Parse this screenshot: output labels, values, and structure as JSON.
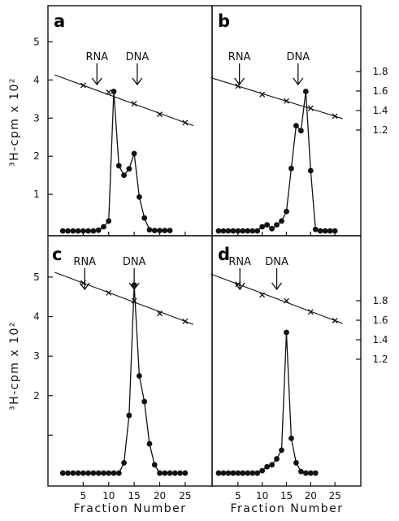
{
  "chart_data": {
    "type": "line",
    "xlabel": "Fraction Number",
    "ylabel": "³H-cpm x 10²",
    "marker_labels": {
      "rna": "RNA",
      "dna": "DNA"
    },
    "grid": false,
    "left_axis": {
      "ticks": [
        1,
        2,
        3,
        4,
        5
      ]
    },
    "right_axis": {
      "ticks": [
        "1.8",
        "1.6",
        "1.4",
        "1.2"
      ]
    },
    "x_ticks": [
      5,
      10,
      15,
      20,
      25
    ],
    "panels": [
      {
        "letter": "a",
        "label_fontsize": "small",
        "rna_fraction": 7.7,
        "dna_fraction": 15.6,
        "has_right_axis": false,
        "series": [
          {
            "type": "line-markers-filled",
            "x": [
              1,
              2,
              3,
              4,
              5,
              6,
              7,
              8,
              9,
              10,
              11,
              12,
              13,
              14,
              15,
              16,
              17,
              18,
              19,
              20,
              21,
              22
            ],
            "y": [
              0.04,
              0.04,
              0.04,
              0.04,
              0.04,
              0.04,
              0.04,
              0.06,
              0.15,
              0.3,
              3.7,
              1.75,
              1.5,
              1.67,
              2.07,
              0.93,
              0.38,
              0.07,
              0.05,
              0.05,
              0.05,
              0.05
            ]
          },
          {
            "type": "line-markers-x",
            "x": [
              5,
              10,
              15,
              20,
              25
            ],
            "y": [
              3.86,
              3.68,
              3.38,
              3.1,
              2.88
            ]
          }
        ]
      },
      {
        "letter": "b",
        "label_fontsize": "small",
        "rna_fraction": 5.3,
        "dna_fraction": 17.4,
        "has_right_axis": true,
        "series": [
          {
            "type": "line-markers-filled",
            "x": [
              1,
              2,
              3,
              4,
              5,
              6,
              7,
              8,
              9,
              10,
              11,
              12,
              13,
              14,
              15,
              16,
              17,
              18,
              19,
              20,
              21,
              22,
              23,
              24,
              25
            ],
            "y": [
              0.04,
              0.04,
              0.04,
              0.04,
              0.04,
              0.04,
              0.04,
              0.04,
              0.04,
              0.15,
              0.2,
              0.1,
              0.2,
              0.3,
              0.55,
              1.68,
              2.8,
              2.67,
              3.7,
              1.62,
              0.08,
              0.04,
              0.04,
              0.04,
              0.04
            ]
          },
          {
            "type": "line-markers-x",
            "x": [
              5,
              10,
              15,
              20,
              25
            ],
            "y": [
              3.84,
              3.62,
              3.45,
              3.26,
              3.05
            ]
          }
        ]
      },
      {
        "letter": "c",
        "label_fontsize": "small",
        "rna_fraction": 5.3,
        "dna_fraction": 15.0,
        "has_right_axis": false,
        "series": [
          {
            "type": "line-markers-filled",
            "x": [
              1,
              2,
              3,
              4,
              5,
              6,
              7,
              8,
              9,
              10,
              11,
              12,
              13,
              14,
              15,
              16,
              17,
              18,
              19,
              20,
              21,
              22,
              23,
              24,
              25
            ],
            "y": [
              0.04,
              0.04,
              0.04,
              0.04,
              0.04,
              0.04,
              0.04,
              0.04,
              0.04,
              0.04,
              0.04,
              0.04,
              0.3,
              1.5,
              4.8,
              2.5,
              1.85,
              0.78,
              0.25,
              0.04,
              0.04,
              0.04,
              0.04,
              0.04,
              0.04
            ]
          },
          {
            "type": "line-markers-x",
            "x": [
              5,
              10,
              15,
              20,
              25
            ],
            "y": [
              4.85,
              4.6,
              4.4,
              4.08,
              3.88
            ]
          }
        ]
      },
      {
        "letter": "d",
        "label_fontsize": "small",
        "rna_fraction": 5.4,
        "dna_fraction": 13.0,
        "has_right_axis": true,
        "series": [
          {
            "type": "line-markers-filled",
            "x": [
              1,
              2,
              3,
              4,
              5,
              6,
              7,
              8,
              9,
              10,
              11,
              12,
              13,
              14,
              15,
              16,
              17,
              18,
              19,
              20,
              21
            ],
            "y": [
              0.04,
              0.04,
              0.04,
              0.04,
              0.04,
              0.04,
              0.04,
              0.04,
              0.04,
              0.1,
              0.2,
              0.25,
              0.4,
              0.62,
              3.6,
              0.92,
              0.3,
              0.08,
              0.04,
              0.04,
              0.04
            ]
          },
          {
            "type": "line-markers-x",
            "x": [
              5,
              10,
              15,
              20,
              25
            ],
            "y": [
              4.82,
              4.55,
              4.4,
              4.12,
              3.9
            ]
          }
        ]
      }
    ]
  }
}
